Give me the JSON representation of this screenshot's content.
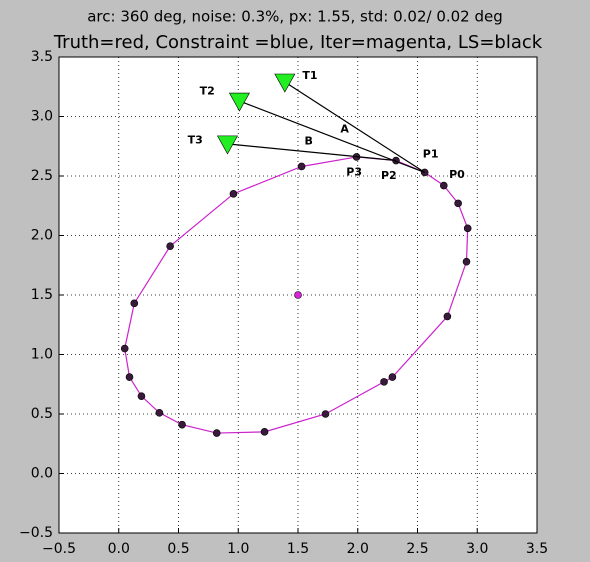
{
  "chart_data": {
    "type": "scatter",
    "title": "arc: 360 deg, noise: 0.3%, px: 1.55, std: 0.02/ 0.02 deg",
    "subtitle": "Truth=red, Constraint =blue, Iter=magenta, LS=black",
    "xlim": [
      -0.5,
      3.5
    ],
    "ylim": [
      -0.5,
      3.5
    ],
    "xticks": [
      {
        "value": -0.5,
        "label": "−0.5"
      },
      {
        "value": 0,
        "label": "0.0"
      },
      0.5,
      {
        "value": 1,
        "label": "1.0"
      },
      1.5,
      {
        "value": 2,
        "label": "2.0"
      },
      2.5,
      {
        "value": 3,
        "label": "3.0"
      },
      3.5
    ],
    "yticks": [
      {
        "value": -0.5,
        "label": "−0.5"
      },
      {
        "value": 0,
        "label": "0.0"
      },
      0.5,
      {
        "value": 1,
        "label": "1.0"
      },
      1.5,
      {
        "value": 2,
        "label": "2.0"
      },
      2.5,
      {
        "value": 3,
        "label": "3.0"
      },
      3.5
    ],
    "grid": true,
    "series": [
      {
        "color": "#cc22cc",
        "line": true,
        "marker": null,
        "x": [
          2.72,
          2.56,
          2.32,
          1.99,
          1.53,
          0.96,
          0.43,
          0.13,
          0.05,
          0.09,
          0.19,
          0.34,
          0.53,
          0.82,
          1.22,
          1.73,
          2.22,
          2.29,
          2.75,
          2.91,
          2.92,
          2.84,
          2.72
        ],
        "y": [
          2.42,
          2.53,
          2.63,
          2.66,
          2.58,
          2.35,
          1.91,
          1.43,
          1.05,
          0.81,
          0.65,
          0.51,
          0.41,
          0.34,
          0.35,
          0.5,
          0.77,
          0.81,
          1.32,
          1.78,
          2.06,
          2.27,
          2.42
        ]
      },
      {
        "color": "#3a1a3a",
        "line": false,
        "marker": "o",
        "x": [
          2.72,
          2.56,
          2.32,
          1.99,
          1.53,
          0.96,
          0.43,
          0.13,
          0.05,
          0.09,
          0.19,
          0.34,
          0.53,
          0.82,
          1.22,
          1.73,
          2.22,
          2.29,
          2.75,
          2.91,
          2.92,
          2.84
        ],
        "y": [
          2.42,
          2.53,
          2.63,
          2.66,
          2.58,
          2.35,
          1.91,
          1.43,
          1.05,
          0.81,
          0.65,
          0.51,
          0.41,
          0.34,
          0.35,
          0.5,
          0.77,
          0.81,
          1.32,
          1.78,
          2.06,
          2.27
        ]
      },
      {
        "color": "#dd22dd",
        "line": false,
        "marker": "o",
        "x": [
          1.5
        ],
        "y": [
          1.5
        ]
      },
      {
        "color": "#000000",
        "line": true,
        "marker": null,
        "x": [
          1.39,
          2.56
        ],
        "y": [
          3.29,
          2.53
        ]
      },
      {
        "color": "#000000",
        "line": true,
        "marker": null,
        "x": [
          1.01,
          2.56
        ],
        "y": [
          3.13,
          2.53
        ]
      },
      {
        "color": "#000000",
        "line": true,
        "marker": null,
        "x": [
          0.91,
          2.32
        ],
        "y": [
          2.77,
          2.63
        ]
      },
      {
        "color": "#22ee22",
        "line": false,
        "marker": "v",
        "x": [
          1.39,
          1.01,
          0.91
        ],
        "y": [
          3.29,
          3.13,
          2.77
        ]
      }
    ],
    "annotations": [
      {
        "text": "T1",
        "x": 1.6,
        "y": 3.34
      },
      {
        "text": "T2",
        "x": 0.74,
        "y": 3.21
      },
      {
        "text": "T3",
        "x": 0.64,
        "y": 2.8
      },
      {
        "text": "A",
        "x": 1.89,
        "y": 2.89
      },
      {
        "text": "B",
        "x": 1.59,
        "y": 2.79
      },
      {
        "text": "P1",
        "x": 2.61,
        "y": 2.68
      },
      {
        "text": "P0",
        "x": 2.83,
        "y": 2.51
      },
      {
        "text": "P2",
        "x": 2.26,
        "y": 2.5
      },
      {
        "text": "P3",
        "x": 1.97,
        "y": 2.53
      }
    ]
  }
}
